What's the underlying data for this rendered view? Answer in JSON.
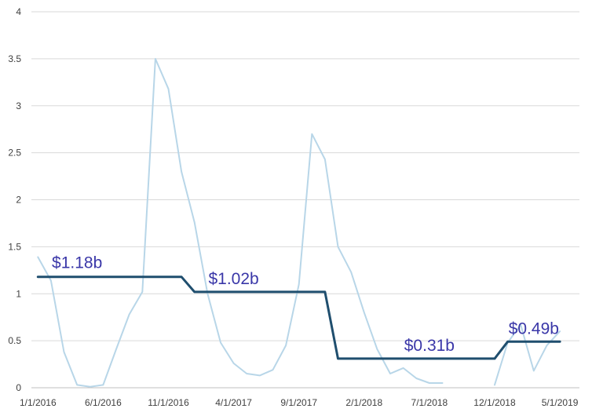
{
  "chart_data": {
    "type": "line",
    "title": "",
    "xlabel": "",
    "ylabel": "",
    "ylim": [
      0,
      4
    ],
    "y_ticks": [
      0,
      0.5,
      1,
      1.5,
      2,
      2.5,
      3,
      3.5,
      4
    ],
    "y_tick_labels": [
      "0",
      "0.5",
      "1",
      "1.5",
      "2",
      "2.5",
      "3",
      "3.5",
      "4"
    ],
    "x_tick_labels": [
      "1/1/2016",
      "6/1/2016",
      "11/1/2016",
      "4/1/2017",
      "9/1/2017",
      "2/1/2018",
      "7/1/2018",
      "12/1/2018",
      "5/1/2019"
    ],
    "grid": "horizontal",
    "legend": "none",
    "x": [
      "1/1/2016",
      "2/1/2016",
      "3/1/2016",
      "4/1/2016",
      "5/1/2016",
      "6/1/2016",
      "7/1/2016",
      "8/1/2016",
      "9/1/2016",
      "10/1/2016",
      "11/1/2016",
      "12/1/2016",
      "1/1/2017",
      "2/1/2017",
      "3/1/2017",
      "4/1/2017",
      "5/1/2017",
      "6/1/2017",
      "7/1/2017",
      "8/1/2017",
      "9/1/2017",
      "10/1/2017",
      "11/1/2017",
      "12/1/2017",
      "1/1/2018",
      "2/1/2018",
      "3/1/2018",
      "4/1/2018",
      "5/1/2018",
      "6/1/2018",
      "7/1/2018",
      "8/1/2018",
      "9/1/2018",
      "10/1/2018",
      "11/1/2018",
      "12/1/2018",
      "1/1/2019",
      "2/1/2019",
      "3/1/2019",
      "4/1/2019",
      "5/1/2019",
      "6/1/2019"
    ],
    "series": [
      {
        "color": "#b8d6e8",
        "values": [
          1.39,
          1.14,
          0.38,
          0.03,
          0.01,
          0.03,
          0.41,
          0.78,
          1.02,
          3.5,
          3.18,
          2.3,
          1.76,
          1.0,
          0.48,
          0.26,
          0.15,
          0.13,
          0.19,
          0.45,
          1.1,
          2.7,
          2.43,
          1.5,
          1.23,
          0.8,
          0.41,
          0.15,
          0.21,
          0.1,
          0.05,
          0.05,
          null,
          null,
          null,
          0.03,
          0.48,
          0.67,
          0.18,
          0.45,
          0.6,
          null
        ]
      },
      {
        "color": "#1f4e6e",
        "values": [
          1.18,
          1.18,
          1.18,
          1.18,
          1.18,
          1.18,
          1.18,
          1.18,
          1.18,
          1.18,
          1.18,
          1.18,
          1.02,
          1.02,
          1.02,
          1.02,
          1.02,
          1.02,
          1.02,
          1.02,
          1.02,
          1.02,
          1.02,
          0.31,
          0.31,
          0.31,
          0.31,
          0.31,
          0.31,
          0.31,
          0.31,
          0.31,
          0.31,
          0.31,
          0.31,
          0.31,
          0.49,
          0.49,
          0.49,
          0.49,
          0.49,
          null
        ]
      }
    ],
    "annotations": [
      {
        "text": "$1.18b",
        "x": "4/1/2016",
        "y": 1.34
      },
      {
        "text": "$1.02b",
        "x": "4/1/2017",
        "y": 1.17
      },
      {
        "text": "$0.31b",
        "x": "7/1/2018",
        "y": 0.46
      },
      {
        "text": "$0.49b",
        "x": "3/1/2019",
        "y": 0.64
      }
    ],
    "annotation_color": "#3a37a8",
    "grid_color": "#d9d9d9",
    "axis_color": "#bfbfbf"
  }
}
